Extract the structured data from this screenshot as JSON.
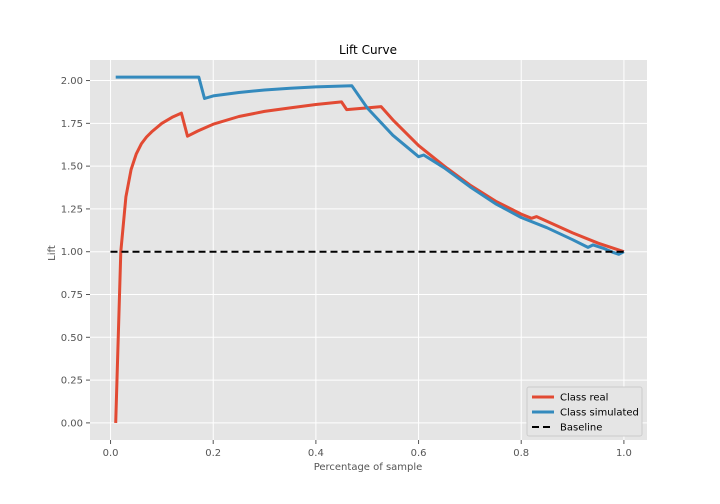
{
  "chart_data": {
    "type": "line",
    "title": "Lift Curve",
    "xlabel": "Percentage of sample",
    "ylabel": "Lift",
    "xlim": [
      -0.04,
      1.045
    ],
    "ylim": [
      -0.1,
      2.12
    ],
    "xticks": [
      0.0,
      0.2,
      0.4,
      0.6,
      0.8,
      1.0
    ],
    "xtick_labels": [
      "0.0",
      "0.2",
      "0.4",
      "0.6",
      "0.8",
      "1.0"
    ],
    "yticks": [
      0.0,
      0.25,
      0.5,
      0.75,
      1.0,
      1.25,
      1.5,
      1.75,
      2.0
    ],
    "ytick_labels": [
      "0.00",
      "0.25",
      "0.50",
      "0.75",
      "1.00",
      "1.25",
      "1.50",
      "1.75",
      "2.00"
    ],
    "grid": true,
    "legend_position": "bottom-right",
    "series": [
      {
        "name": "Class real",
        "color": "#e24a33",
        "dash": false,
        "points": [
          [
            0.01,
            0.0
          ],
          [
            0.02,
            1.0
          ],
          [
            0.03,
            1.32
          ],
          [
            0.04,
            1.48
          ],
          [
            0.05,
            1.57
          ],
          [
            0.06,
            1.63
          ],
          [
            0.07,
            1.67
          ],
          [
            0.08,
            1.7
          ],
          [
            0.1,
            1.75
          ],
          [
            0.12,
            1.785
          ],
          [
            0.138,
            1.81
          ],
          [
            0.15,
            1.675
          ],
          [
            0.17,
            1.705
          ],
          [
            0.2,
            1.745
          ],
          [
            0.25,
            1.79
          ],
          [
            0.3,
            1.82
          ],
          [
            0.35,
            1.84
          ],
          [
            0.4,
            1.86
          ],
          [
            0.45,
            1.875
          ],
          [
            0.46,
            1.83
          ],
          [
            0.5,
            1.84
          ],
          [
            0.527,
            1.848
          ],
          [
            0.55,
            1.77
          ],
          [
            0.6,
            1.62
          ],
          [
            0.65,
            1.5
          ],
          [
            0.7,
            1.39
          ],
          [
            0.75,
            1.295
          ],
          [
            0.8,
            1.22
          ],
          [
            0.82,
            1.195
          ],
          [
            0.83,
            1.205
          ],
          [
            0.9,
            1.11
          ],
          [
            0.95,
            1.05
          ],
          [
            1.0,
            1.0
          ]
        ]
      },
      {
        "name": "Class simulated",
        "color": "#348abd",
        "dash": false,
        "points": [
          [
            0.01,
            2.02
          ],
          [
            0.172,
            2.02
          ],
          [
            0.183,
            1.895
          ],
          [
            0.2,
            1.91
          ],
          [
            0.25,
            1.93
          ],
          [
            0.3,
            1.945
          ],
          [
            0.35,
            1.955
          ],
          [
            0.4,
            1.963
          ],
          [
            0.47,
            1.97
          ],
          [
            0.5,
            1.84
          ],
          [
            0.55,
            1.68
          ],
          [
            0.6,
            1.555
          ],
          [
            0.61,
            1.565
          ],
          [
            0.65,
            1.49
          ],
          [
            0.7,
            1.38
          ],
          [
            0.75,
            1.28
          ],
          [
            0.8,
            1.2
          ],
          [
            0.85,
            1.14
          ],
          [
            0.9,
            1.07
          ],
          [
            0.93,
            1.025
          ],
          [
            0.94,
            1.04
          ],
          [
            0.96,
            1.02
          ],
          [
            0.98,
            0.995
          ],
          [
            0.99,
            0.985
          ],
          [
            1.0,
            1.0
          ]
        ]
      },
      {
        "name": "Baseline",
        "color": "#000000",
        "dash": true,
        "points": [
          [
            0.0,
            1.0
          ],
          [
            1.0,
            1.0
          ]
        ]
      }
    ]
  }
}
